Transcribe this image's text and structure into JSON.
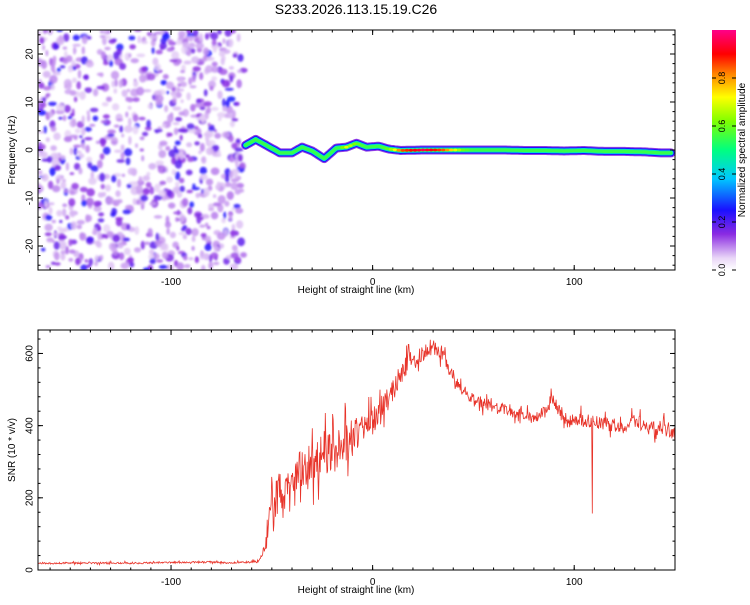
{
  "title": "S233.2026.113.15.19.C26",
  "chart_data": [
    {
      "type": "heatmap",
      "xlabel": "Height of straight line (km)",
      "ylabel": "Frequency (Hz)",
      "xlim": [
        -166,
        150
      ],
      "ylim": [
        -25,
        25
      ],
      "xticks": [
        -100,
        0,
        100
      ],
      "yticks": [
        -20,
        -10,
        0,
        10,
        20
      ],
      "noise_region": {
        "x": [
          -166,
          -64
        ],
        "description_level": "low amplitude scattered 0.05-0.35"
      },
      "ridge": [
        {
          "x": -63,
          "y": 1.0,
          "a": 0.35
        },
        {
          "x": -58,
          "y": 2.2,
          "a": 0.45
        },
        {
          "x": -52,
          "y": 0.8,
          "a": 0.4
        },
        {
          "x": -46,
          "y": -0.6,
          "a": 0.45
        },
        {
          "x": -40,
          "y": -0.6,
          "a": 0.4
        },
        {
          "x": -35,
          "y": 0.6,
          "a": 0.45
        },
        {
          "x": -30,
          "y": -0.2,
          "a": 0.4
        },
        {
          "x": -24,
          "y": -1.8,
          "a": 0.45
        },
        {
          "x": -18,
          "y": 0.4,
          "a": 0.5
        },
        {
          "x": -13,
          "y": 0.6,
          "a": 0.7
        },
        {
          "x": -8,
          "y": 1.4,
          "a": 0.6
        },
        {
          "x": -3,
          "y": 0.6,
          "a": 0.55
        },
        {
          "x": 3,
          "y": 0.8,
          "a": 0.55
        },
        {
          "x": 8,
          "y": 0.2,
          "a": 0.6
        },
        {
          "x": 14,
          "y": -0.1,
          "a": 0.85
        },
        {
          "x": 25,
          "y": 0.0,
          "a": 0.95
        },
        {
          "x": 35,
          "y": 0.0,
          "a": 0.85
        },
        {
          "x": 45,
          "y": 0.0,
          "a": 0.6
        },
        {
          "x": 55,
          "y": 0.0,
          "a": 0.5
        },
        {
          "x": 65,
          "y": 0.0,
          "a": 0.55
        },
        {
          "x": 75,
          "y": -0.1,
          "a": 0.5
        },
        {
          "x": 85,
          "y": -0.1,
          "a": 0.45
        },
        {
          "x": 95,
          "y": -0.2,
          "a": 0.45
        },
        {
          "x": 105,
          "y": -0.1,
          "a": 0.5
        },
        {
          "x": 115,
          "y": -0.3,
          "a": 0.4
        },
        {
          "x": 125,
          "y": -0.3,
          "a": 0.4
        },
        {
          "x": 135,
          "y": -0.4,
          "a": 0.4
        },
        {
          "x": 143,
          "y": -0.6,
          "a": 0.45
        },
        {
          "x": 148,
          "y": -0.6,
          "a": 0.4
        }
      ],
      "colorbar": {
        "label": "Normalized spectral amplitude",
        "range": [
          0,
          1
        ],
        "ticks": [
          "0.0",
          "0.2",
          "0.4",
          "0.6",
          "0.8"
        ],
        "colormap": "rainbow (white-violet-blue-cyan-green-yellow-orange-red-pink)"
      }
    },
    {
      "type": "line",
      "xlabel": "Height of straight line (km)",
      "ylabel": "SNR (10 * v/v)",
      "xlim": [
        -166,
        150
      ],
      "ylim": [
        0,
        665
      ],
      "xticks": [
        -100,
        0,
        100
      ],
      "yticks": [
        0,
        200,
        400,
        600
      ],
      "color": "#e8342a",
      "series": [
        {
          "x": [
            -166,
            -140,
            -120,
            -100,
            -80,
            -70,
            -60,
            -56,
            -54,
            -52,
            -50,
            -47,
            -45,
            -43,
            -40,
            -36,
            -32,
            -28,
            -24,
            -20,
            -16,
            -12,
            -8,
            -4,
            0,
            4,
            8,
            12,
            16,
            20,
            24,
            28,
            31,
            34,
            38,
            42,
            46,
            50,
            56,
            62,
            68,
            74,
            80,
            86,
            89,
            92,
            96,
            100,
            105,
            110,
            115,
            120,
            125,
            130,
            135,
            140,
            145,
            150
          ],
          "y": [
            18,
            20,
            19,
            21,
            22,
            20,
            22,
            25,
            45,
            120,
            210,
            250,
            180,
            260,
            240,
            290,
            270,
            300,
            330,
            320,
            350,
            360,
            380,
            390,
            410,
            440,
            480,
            520,
            560,
            580,
            600,
            615,
            620,
            600,
            560,
            510,
            490,
            470,
            460,
            450,
            440,
            430,
            420,
            440,
            480,
            450,
            400,
            420,
            415,
            410,
            405,
            400,
            395,
            420,
            400,
            390,
            395,
            380
          ],
          "jitter": [
            4,
            4,
            4,
            4,
            4,
            4,
            5,
            8,
            30,
            80,
            90,
            90,
            110,
            90,
            80,
            80,
            80,
            90,
            100,
            100,
            90,
            90,
            80,
            70,
            60,
            60,
            55,
            55,
            50,
            50,
            45,
            45,
            45,
            40,
            40,
            35,
            30,
            30,
            28,
            25,
            25,
            25,
            25,
            28,
            28,
            28,
            25,
            30,
            30,
            30,
            30,
            30,
            30,
            30,
            35,
            40,
            40,
            40
          ]
        }
      ]
    }
  ]
}
